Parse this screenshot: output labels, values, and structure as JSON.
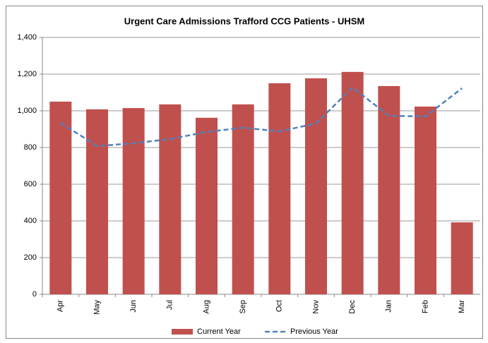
{
  "chart_data": {
    "type": "bar",
    "title": "Urgent Care Admissions Trafford CCG Patients - UHSM",
    "categories": [
      "Apr",
      "May",
      "Jun",
      "Jul",
      "Aug",
      "Sep",
      "Oct",
      "Nov",
      "Dec",
      "Jan",
      "Feb",
      "Mar"
    ],
    "series": [
      {
        "name": "Current Year",
        "type": "bar",
        "color": "#c0504d",
        "values": [
          1050,
          1008,
          1015,
          1035,
          962,
          1035,
          1150,
          1177,
          1212,
          1135,
          1023,
          392
        ]
      },
      {
        "name": "Previous Year",
        "type": "line",
        "color": "#4f81bd",
        "values": [
          935,
          808,
          823,
          846,
          885,
          908,
          888,
          931,
          1127,
          973,
          969,
          1123
        ]
      }
    ],
    "ylim": [
      0,
      1400
    ],
    "yticks": [
      0,
      200,
      400,
      600,
      800,
      {
        "value": 1000,
        "label": "1,000"
      },
      {
        "value": 1200,
        "label": "1,200"
      },
      {
        "value": 1400,
        "label": "1,400"
      }
    ],
    "grid": true,
    "legend": "bottom"
  }
}
